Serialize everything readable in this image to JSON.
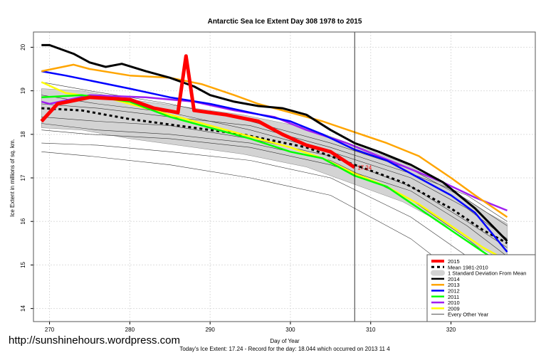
{
  "chart_data": {
    "type": "line",
    "title": "Antarctic Sea Ice Extent Day 308 1978 to 2015",
    "xlabel": "Day of Year",
    "ylabel": "Ice Extent in millions of sq. km.",
    "subtitle": "Today's Ice Extent: 17.24  - Record for the day: 18.044 which occurred on 2013 11 4",
    "xlim": [
      268,
      330.5
    ],
    "ylim": [
      13.7,
      20.35
    ],
    "xticks": [
      "270",
      "280",
      "290",
      "300",
      "310",
      "320"
    ],
    "yticks": [
      "14",
      "15",
      "16",
      "17",
      "18",
      "19",
      "20"
    ],
    "grid": true,
    "legend_placement": "bottom-right",
    "current_day": 308,
    "current_label": "17.24",
    "std_band_halfwidth": 0.45,
    "mean": {
      "name": "Mean 1981-2010",
      "color": "#000000",
      "points": [
        [
          269,
          18.6
        ],
        [
          274,
          18.55
        ],
        [
          280,
          18.35
        ],
        [
          288,
          18.15
        ],
        [
          294,
          18.0
        ],
        [
          302,
          17.7
        ],
        [
          308,
          17.3
        ],
        [
          314,
          16.9
        ],
        [
          320,
          16.3
        ],
        [
          324,
          15.8
        ],
        [
          327,
          15.5
        ]
      ]
    },
    "std_label": "1 Standard Deviation From Mean",
    "other_years_label": "Every Other Year",
    "other_years": [
      [
        [
          269,
          18.1
        ],
        [
          275,
          18.0
        ],
        [
          285,
          17.9
        ],
        [
          295,
          17.7
        ],
        [
          305,
          17.3
        ],
        [
          315,
          16.7
        ],
        [
          322,
          15.9
        ],
        [
          327,
          15.2
        ]
      ],
      [
        [
          269,
          17.6
        ],
        [
          275,
          17.5
        ],
        [
          285,
          17.3
        ],
        [
          295,
          17.0
        ],
        [
          305,
          16.6
        ],
        [
          315,
          15.6
        ],
        [
          322,
          14.6
        ],
        [
          327,
          13.95
        ]
      ],
      [
        [
          269,
          17.8
        ],
        [
          276,
          17.75
        ],
        [
          285,
          17.6
        ],
        [
          295,
          17.4
        ],
        [
          305,
          17.0
        ],
        [
          315,
          16.1
        ],
        [
          322,
          15.2
        ],
        [
          327,
          14.6
        ]
      ],
      [
        [
          269,
          19.2
        ],
        [
          275,
          19.0
        ],
        [
          285,
          18.7
        ],
        [
          295,
          18.3
        ],
        [
          305,
          17.8
        ],
        [
          315,
          17.2
        ],
        [
          322,
          16.5
        ],
        [
          327,
          15.9
        ]
      ],
      [
        [
          269,
          18.4
        ],
        [
          276,
          18.3
        ],
        [
          285,
          18.2
        ],
        [
          295,
          17.9
        ],
        [
          305,
          17.5
        ],
        [
          315,
          16.8
        ],
        [
          322,
          16.0
        ],
        [
          327,
          15.4
        ]
      ],
      [
        [
          269,
          18.9
        ],
        [
          276,
          18.7
        ],
        [
          285,
          18.5
        ],
        [
          295,
          18.1
        ],
        [
          305,
          17.6
        ],
        [
          315,
          17.0
        ],
        [
          322,
          16.3
        ],
        [
          327,
          15.6
        ]
      ],
      [
        [
          269,
          18.25
        ],
        [
          276,
          18.1
        ],
        [
          285,
          18.0
        ],
        [
          295,
          17.8
        ],
        [
          305,
          17.4
        ],
        [
          315,
          16.5
        ],
        [
          322,
          15.6
        ],
        [
          327,
          14.9
        ]
      ],
      [
        [
          269,
          18.7
        ],
        [
          276,
          18.6
        ],
        [
          285,
          18.4
        ],
        [
          295,
          18.2
        ],
        [
          305,
          17.7
        ],
        [
          315,
          17.1
        ],
        [
          322,
          16.6
        ],
        [
          327,
          16.0
        ]
      ]
    ],
    "series": [
      {
        "name": "2015",
        "color": "#ff0000",
        "width": 5,
        "points": [
          [
            269,
            18.3
          ],
          [
            271,
            18.7
          ],
          [
            275,
            18.85
          ],
          [
            280,
            18.8
          ],
          [
            283,
            18.6
          ],
          [
            286,
            18.5
          ],
          [
            287,
            19.8
          ],
          [
            288,
            18.55
          ],
          [
            292,
            18.45
          ],
          [
            296,
            18.3
          ],
          [
            299,
            18.0
          ],
          [
            302,
            17.75
          ],
          [
            305,
            17.6
          ],
          [
            308,
            17.24
          ]
        ]
      },
      {
        "name": "2014",
        "color": "#000000",
        "width": 3,
        "points": [
          [
            269,
            20.05
          ],
          [
            270,
            20.05
          ],
          [
            273,
            19.85
          ],
          [
            275,
            19.65
          ],
          [
            277,
            19.55
          ],
          [
            279,
            19.62
          ],
          [
            282,
            19.45
          ],
          [
            285,
            19.3
          ],
          [
            288,
            19.1
          ],
          [
            290,
            18.9
          ],
          [
            293,
            18.75
          ],
          [
            296,
            18.65
          ],
          [
            299,
            18.6
          ],
          [
            302,
            18.45
          ],
          [
            305,
            18.1
          ],
          [
            308,
            17.8
          ],
          [
            311,
            17.6
          ],
          [
            315,
            17.3
          ],
          [
            319,
            16.9
          ],
          [
            323,
            16.3
          ],
          [
            327,
            15.55
          ]
        ]
      },
      {
        "name": "2013",
        "color": "#ffa500",
        "width": 2.5,
        "points": [
          [
            269,
            19.45
          ],
          [
            273,
            19.6
          ],
          [
            275,
            19.5
          ],
          [
            280,
            19.35
          ],
          [
            285,
            19.3
          ],
          [
            289,
            19.15
          ],
          [
            293,
            18.9
          ],
          [
            296,
            18.7
          ],
          [
            300,
            18.5
          ],
          [
            304,
            18.3
          ],
          [
            308,
            18.05
          ],
          [
            312,
            17.8
          ],
          [
            316,
            17.5
          ],
          [
            320,
            17.0
          ],
          [
            323,
            16.6
          ],
          [
            327,
            16.1
          ]
        ]
      },
      {
        "name": "2012",
        "color": "#0000ff",
        "width": 2.5,
        "points": [
          [
            269,
            19.45
          ],
          [
            272,
            19.35
          ],
          [
            276,
            19.2
          ],
          [
            280,
            19.05
          ],
          [
            285,
            18.85
          ],
          [
            290,
            18.7
          ],
          [
            295,
            18.5
          ],
          [
            300,
            18.3
          ],
          [
            304,
            18.0
          ],
          [
            308,
            17.65
          ],
          [
            312,
            17.4
          ],
          [
            316,
            17.0
          ],
          [
            320,
            16.6
          ],
          [
            323,
            16.2
          ],
          [
            327,
            15.3
          ]
        ]
      },
      {
        "name": "2011",
        "color": "#00ff00",
        "width": 2.5,
        "points": [
          [
            269,
            18.85
          ],
          [
            274,
            18.9
          ],
          [
            280,
            18.75
          ],
          [
            285,
            18.4
          ],
          [
            290,
            18.15
          ],
          [
            295,
            17.9
          ],
          [
            300,
            17.6
          ],
          [
            304,
            17.45
          ],
          [
            308,
            17.05
          ],
          [
            312,
            16.8
          ],
          [
            316,
            16.3
          ],
          [
            320,
            15.8
          ],
          [
            324,
            15.3
          ],
          [
            327,
            14.95
          ]
        ]
      },
      {
        "name": "2010",
        "color": "#a020f0",
        "width": 2.5,
        "points": [
          [
            269,
            18.75
          ],
          [
            270,
            18.7
          ],
          [
            275,
            18.9
          ],
          [
            282,
            18.85
          ],
          [
            288,
            18.75
          ],
          [
            293,
            18.55
          ],
          [
            298,
            18.4
          ],
          [
            302,
            18.1
          ],
          [
            307,
            17.8
          ],
          [
            311,
            17.5
          ],
          [
            315,
            17.2
          ],
          [
            319,
            16.9
          ],
          [
            323,
            16.55
          ],
          [
            327,
            16.25
          ]
        ]
      },
      {
        "name": "2009",
        "color": "#ffff00",
        "width": 2.5,
        "points": [
          [
            269,
            19.2
          ],
          [
            272,
            18.95
          ],
          [
            278,
            18.8
          ],
          [
            284,
            18.5
          ],
          [
            290,
            18.2
          ],
          [
            295,
            17.95
          ],
          [
            300,
            17.7
          ],
          [
            304,
            17.45
          ],
          [
            308,
            17.1
          ],
          [
            312,
            16.8
          ],
          [
            316,
            16.4
          ],
          [
            320,
            15.9
          ],
          [
            324,
            15.4
          ],
          [
            327,
            15.1
          ]
        ]
      }
    ]
  },
  "watermark": "http://sunshinehours.wordpress.com"
}
